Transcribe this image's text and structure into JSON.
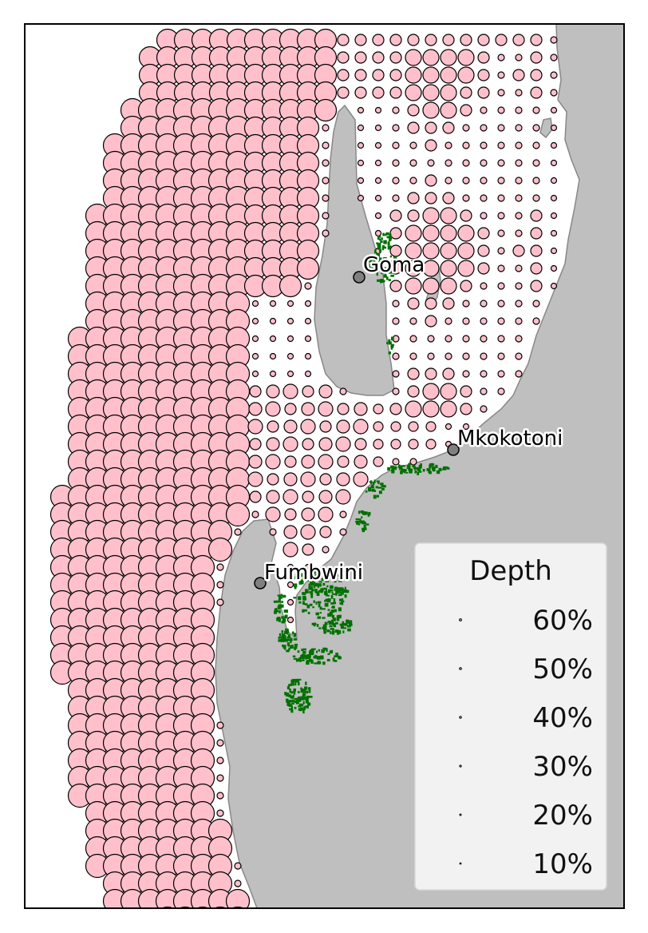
{
  "colors": {
    "land": "#bfbfbf",
    "water": "#ffffff",
    "marker_fill": "#ffc0cb",
    "marker_edge": "#000000",
    "mangrove": "#007000",
    "place_marker": "#808080",
    "legend_bg": "#f2f2f2"
  },
  "places": [
    {
      "name": "Goma",
      "lon": 0.555,
      "lat": 0.295
    },
    {
      "name": "Mkokotoni",
      "lon": 0.7,
      "lat": 0.48
    },
    {
      "name": "Fumbwini",
      "lon": 0.4,
      "lat": 0.632
    }
  ],
  "legend": {
    "title": "Depth",
    "items": [
      "60%",
      "50%",
      "40%",
      "30%",
      "20%",
      "10%"
    ]
  }
}
